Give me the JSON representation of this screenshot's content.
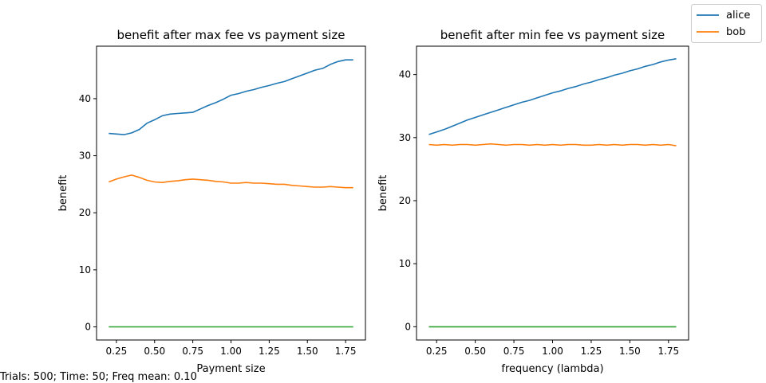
{
  "legend": {
    "placement": "top-right",
    "entries": [
      {
        "label": "alice",
        "color": "#1f77b4"
      },
      {
        "label": "bob",
        "color": "#ff7f0e"
      }
    ]
  },
  "footnote": "Trials: 500; Time: 50; Freq mean: 0.10",
  "chart_data": [
    {
      "type": "line",
      "title": "benefit after max fee vs payment size",
      "xlabel": "Payment size",
      "ylabel": "benefit",
      "xlim": [
        0.12,
        1.88
      ],
      "ylim": [
        -2.3,
        49.2
      ],
      "xticks": [
        0.25,
        0.5,
        0.75,
        1.0,
        1.25,
        1.5,
        1.75
      ],
      "xtick_labels": [
        "0.25",
        "0.50",
        "0.75",
        "1.00",
        "1.25",
        "1.50",
        "1.75"
      ],
      "yticks": [
        0,
        10,
        20,
        30,
        40
      ],
      "yticks_labels": [
        "0",
        "10",
        "20",
        "30",
        "40"
      ],
      "grid": false,
      "series": [
        {
          "name": "alice",
          "color": "#1f77b4",
          "x": [
            0.2,
            0.25,
            0.3,
            0.35,
            0.4,
            0.45,
            0.5,
            0.55,
            0.6,
            0.65,
            0.7,
            0.75,
            0.8,
            0.85,
            0.9,
            0.95,
            1.0,
            1.05,
            1.1,
            1.15,
            1.2,
            1.25,
            1.3,
            1.35,
            1.4,
            1.45,
            1.5,
            1.55,
            1.6,
            1.65,
            1.7,
            1.75,
            1.8
          ],
          "y": [
            33.9,
            33.8,
            33.7,
            34.0,
            34.6,
            35.7,
            36.3,
            37.0,
            37.3,
            37.4,
            37.5,
            37.6,
            38.2,
            38.8,
            39.3,
            39.9,
            40.6,
            40.9,
            41.3,
            41.6,
            42.0,
            42.3,
            42.7,
            43.0,
            43.5,
            44.0,
            44.5,
            45.0,
            45.3,
            46.0,
            46.5,
            46.8,
            46.8
          ]
        },
        {
          "name": "bob",
          "color": "#ff7f0e",
          "x": [
            0.2,
            0.25,
            0.3,
            0.35,
            0.4,
            0.45,
            0.5,
            0.55,
            0.6,
            0.65,
            0.7,
            0.75,
            0.8,
            0.85,
            0.9,
            0.95,
            1.0,
            1.05,
            1.1,
            1.15,
            1.2,
            1.25,
            1.3,
            1.35,
            1.4,
            1.45,
            1.5,
            1.55,
            1.6,
            1.65,
            1.7,
            1.75,
            1.8
          ],
          "y": [
            25.4,
            25.9,
            26.3,
            26.6,
            26.2,
            25.7,
            25.4,
            25.3,
            25.5,
            25.6,
            25.8,
            25.9,
            25.8,
            25.7,
            25.5,
            25.4,
            25.2,
            25.2,
            25.3,
            25.2,
            25.2,
            25.1,
            25.0,
            25.0,
            24.8,
            24.7,
            24.6,
            24.5,
            24.5,
            24.6,
            24.5,
            24.4,
            24.4
          ]
        },
        {
          "color": "#2ca02c",
          "x": [
            0.2,
            1.8
          ],
          "y": [
            0.0,
            0.0
          ]
        }
      ]
    },
    {
      "type": "line",
      "title": "benefit after min fee vs payment size",
      "xlabel": "frequency (lambda)",
      "ylabel": "benefit",
      "xlim": [
        0.12,
        1.88
      ],
      "ylim": [
        -2.1,
        44.5
      ],
      "xticks": [
        0.25,
        0.5,
        0.75,
        1.0,
        1.25,
        1.5,
        1.75
      ],
      "xtick_labels": [
        "0.25",
        "0.50",
        "0.75",
        "1.00",
        "1.25",
        "1.50",
        "1.75"
      ],
      "yticks": [
        0,
        10,
        20,
        30,
        40
      ],
      "yticks_labels": [
        "0",
        "10",
        "20",
        "30",
        "40"
      ],
      "grid": false,
      "series": [
        {
          "name": "alice",
          "color": "#1f77b4",
          "x": [
            0.2,
            0.25,
            0.3,
            0.35,
            0.4,
            0.45,
            0.5,
            0.55,
            0.6,
            0.65,
            0.7,
            0.75,
            0.8,
            0.85,
            0.9,
            0.95,
            1.0,
            1.05,
            1.1,
            1.15,
            1.2,
            1.25,
            1.3,
            1.35,
            1.4,
            1.45,
            1.5,
            1.55,
            1.6,
            1.65,
            1.7,
            1.75,
            1.8
          ],
          "y": [
            30.5,
            30.9,
            31.3,
            31.8,
            32.3,
            32.8,
            33.2,
            33.6,
            34.0,
            34.4,
            34.8,
            35.2,
            35.6,
            35.9,
            36.3,
            36.7,
            37.1,
            37.4,
            37.8,
            38.1,
            38.5,
            38.8,
            39.2,
            39.5,
            39.9,
            40.2,
            40.6,
            40.9,
            41.3,
            41.6,
            42.0,
            42.3,
            42.5
          ]
        },
        {
          "name": "bob",
          "color": "#ff7f0e",
          "x": [
            0.2,
            0.25,
            0.3,
            0.35,
            0.4,
            0.45,
            0.5,
            0.55,
            0.6,
            0.65,
            0.7,
            0.75,
            0.8,
            0.85,
            0.9,
            0.95,
            1.0,
            1.05,
            1.1,
            1.15,
            1.2,
            1.25,
            1.3,
            1.35,
            1.4,
            1.45,
            1.5,
            1.55,
            1.6,
            1.65,
            1.7,
            1.75,
            1.8
          ],
          "y": [
            28.9,
            28.8,
            28.9,
            28.8,
            28.9,
            28.9,
            28.8,
            28.9,
            29.0,
            28.9,
            28.8,
            28.9,
            28.9,
            28.8,
            28.9,
            28.8,
            28.9,
            28.8,
            28.9,
            28.9,
            28.8,
            28.8,
            28.9,
            28.8,
            28.9,
            28.8,
            28.9,
            28.9,
            28.8,
            28.9,
            28.8,
            28.9,
            28.7
          ]
        },
        {
          "color": "#2ca02c",
          "x": [
            0.2,
            1.8
          ],
          "y": [
            0.0,
            0.0
          ]
        }
      ]
    }
  ]
}
